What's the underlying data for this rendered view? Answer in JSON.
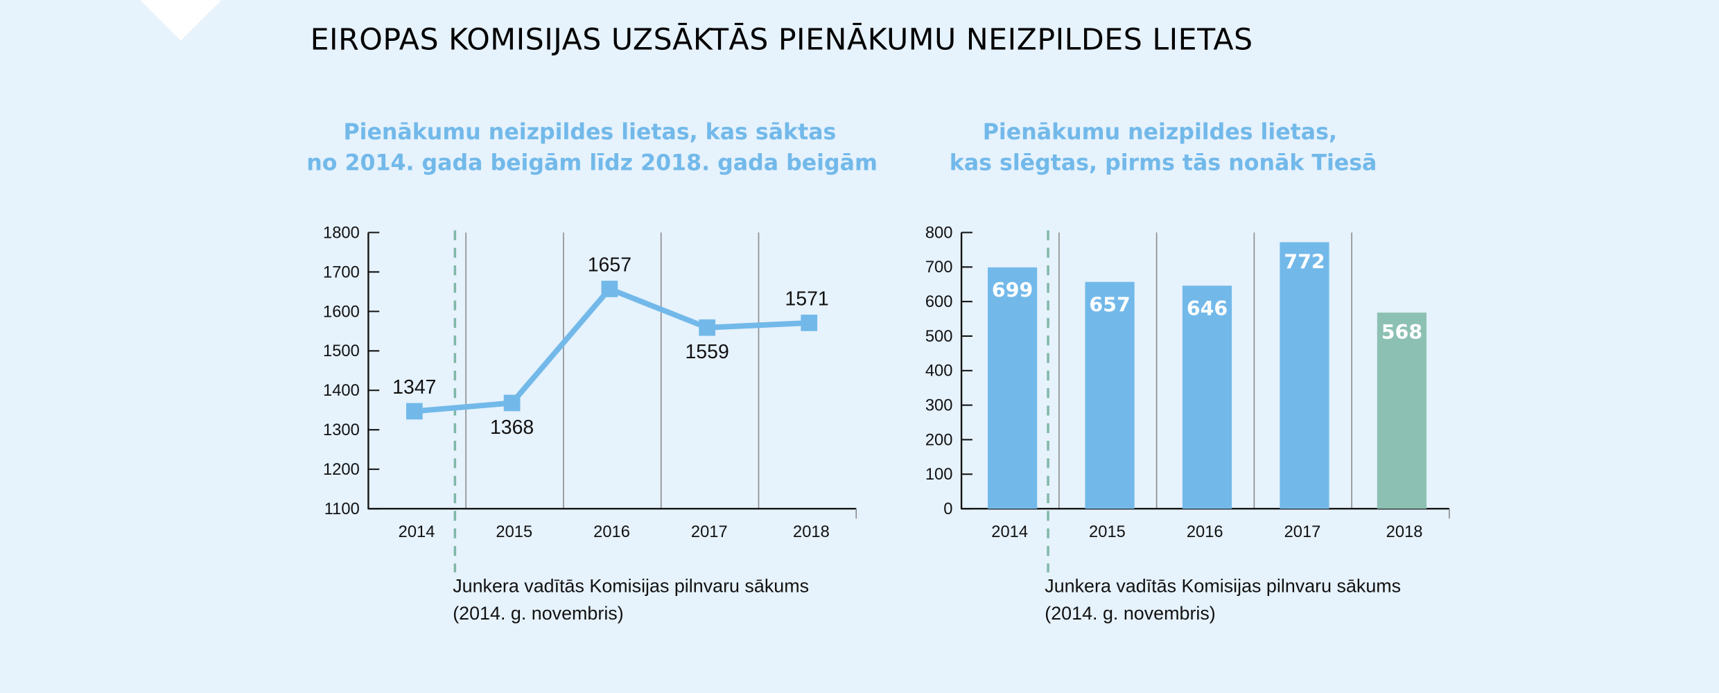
{
  "title": "EIROPAS KOMISIJAS UZSĀKTĀS PIENĀKUMU NEIZPILDES LIETAS",
  "colors": {
    "background": "#e6f2fc",
    "series": "#72b9ea",
    "highlight": "#8cc0b3",
    "marker_line": "#7fb8a8"
  },
  "chart_data": [
    {
      "type": "line",
      "title_lines": [
        "Pienākumu neizpildes lietas, kas sāktas",
        "no 2014. gada beigām līdz 2018. gada beigām"
      ],
      "categories": [
        "2014",
        "2015",
        "2016",
        "2017",
        "2018"
      ],
      "values": [
        1347,
        1368,
        1657,
        1559,
        1571
      ],
      "ylim": [
        1100,
        1800
      ],
      "yticks": [
        "1100",
        "1200",
        "1300",
        "1400",
        "1500",
        "1600",
        "1700",
        "1800"
      ],
      "grid": "vertical",
      "annotation_lines": [
        "Junkera vadītās Komisijas pilnvaru sākums",
        "(2014. g. novembris)"
      ]
    },
    {
      "type": "bar",
      "title_lines": [
        "Pienākumu neizpildes lietas,",
        "kas slēgtas, pirms tās nonāk Tiesā"
      ],
      "categories": [
        "2014",
        "2015",
        "2016",
        "2017",
        "2018"
      ],
      "values": [
        699,
        657,
        646,
        772,
        568
      ],
      "ylim": [
        0,
        800
      ],
      "yticks": [
        "0",
        "100",
        "200",
        "300",
        "400",
        "500",
        "600",
        "700",
        "800"
      ],
      "grid": "vertical",
      "annotation_lines": [
        "Junkera vadītās Komisijas pilnvaru sākums",
        "(2014. g. novembris)"
      ]
    }
  ]
}
